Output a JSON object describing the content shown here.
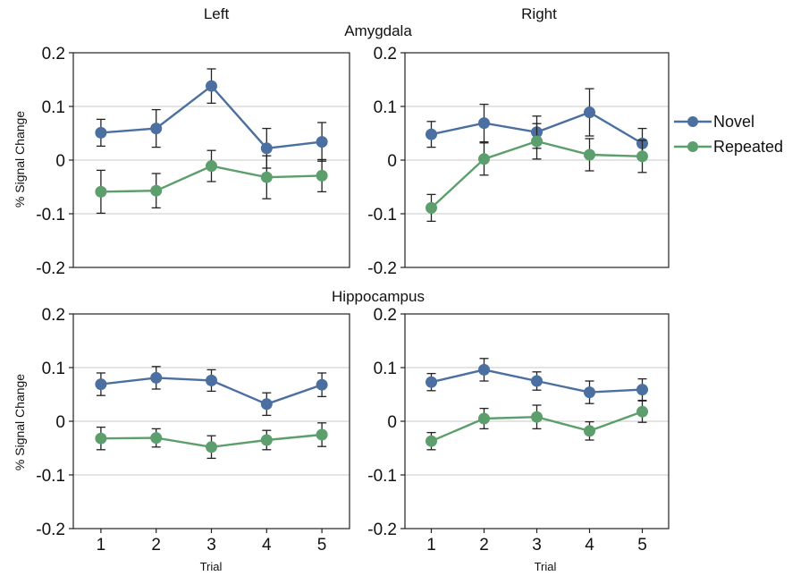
{
  "figure": {
    "column_titles": [
      "Left",
      "Right"
    ],
    "region_titles": [
      "Amygdala",
      "Hippocampus"
    ],
    "y_axis_label": "% Signal Change",
    "x_axis_label": "Trial",
    "colors": {
      "Novel": "#4a6fa0",
      "Repeated": "#5c9e6c"
    },
    "legend_placement": "right of top-right panel"
  },
  "chart_data": [
    {
      "type": "line",
      "region": "Amygdala",
      "side": "Left",
      "x": [
        1,
        2,
        3,
        4,
        5
      ],
      "ylim": [
        -0.2,
        0.2
      ],
      "yticks": [
        "0.2",
        "0.1",
        "0",
        "-0.1",
        "-0.2"
      ],
      "xticks": [],
      "grid": true,
      "series": [
        {
          "name": "Novel",
          "values": [
            0.051,
            0.059,
            0.138,
            0.022,
            0.034
          ],
          "errors": [
            0.025,
            0.035,
            0.032,
            0.037,
            0.036
          ]
        },
        {
          "name": "Repeated",
          "values": [
            -0.059,
            -0.057,
            -0.011,
            -0.032,
            -0.029
          ],
          "errors": [
            0.04,
            0.032,
            0.029,
            0.04,
            0.03
          ]
        }
      ]
    },
    {
      "type": "line",
      "region": "Amygdala",
      "side": "Right",
      "x": [
        1,
        2,
        3,
        4,
        5
      ],
      "ylim": [
        -0.2,
        0.2
      ],
      "yticks": [
        "0.2",
        "0.1",
        "0",
        "-0.1",
        "-0.2"
      ],
      "xticks": [],
      "grid": true,
      "series": [
        {
          "name": "Novel",
          "values": [
            0.048,
            0.069,
            0.052,
            0.089,
            0.031
          ],
          "errors": [
            0.024,
            0.035,
            0.03,
            0.044,
            0.028
          ]
        },
        {
          "name": "Repeated",
          "values": [
            -0.089,
            0.002,
            0.035,
            0.01,
            0.007
          ],
          "errors": [
            0.025,
            0.03,
            0.033,
            0.03,
            0.03
          ]
        }
      ]
    },
    {
      "type": "line",
      "region": "Hippocampus",
      "side": "Left",
      "x": [
        1,
        2,
        3,
        4,
        5
      ],
      "ylim": [
        -0.2,
        0.2
      ],
      "yticks": [
        "0.2",
        "0.1",
        "0",
        "-0.1",
        "-0.2"
      ],
      "xticks": [
        "1",
        "2",
        "3",
        "4",
        "5"
      ],
      "grid": true,
      "series": [
        {
          "name": "Novel",
          "values": [
            0.069,
            0.081,
            0.076,
            0.032,
            0.068
          ],
          "errors": [
            0.021,
            0.021,
            0.02,
            0.021,
            0.022
          ]
        },
        {
          "name": "Repeated",
          "values": [
            -0.032,
            -0.031,
            -0.048,
            -0.035,
            -0.025
          ],
          "errors": [
            0.021,
            0.017,
            0.021,
            0.018,
            0.022
          ]
        }
      ]
    },
    {
      "type": "line",
      "region": "Hippocampus",
      "side": "Right",
      "x": [
        1,
        2,
        3,
        4,
        5
      ],
      "ylim": [
        -0.2,
        0.2
      ],
      "yticks": [
        "0.2",
        "0.1",
        "0",
        "-0.1",
        "-0.2"
      ],
      "xticks": [
        "1",
        "2",
        "3",
        "4",
        "5"
      ],
      "grid": true,
      "series": [
        {
          "name": "Novel",
          "values": [
            0.073,
            0.096,
            0.075,
            0.054,
            0.059
          ],
          "errors": [
            0.016,
            0.021,
            0.017,
            0.021,
            0.02
          ]
        },
        {
          "name": "Repeated",
          "values": [
            -0.037,
            0.005,
            0.008,
            -0.018,
            0.018
          ],
          "errors": [
            0.016,
            0.019,
            0.022,
            0.017,
            0.02
          ]
        }
      ]
    }
  ]
}
